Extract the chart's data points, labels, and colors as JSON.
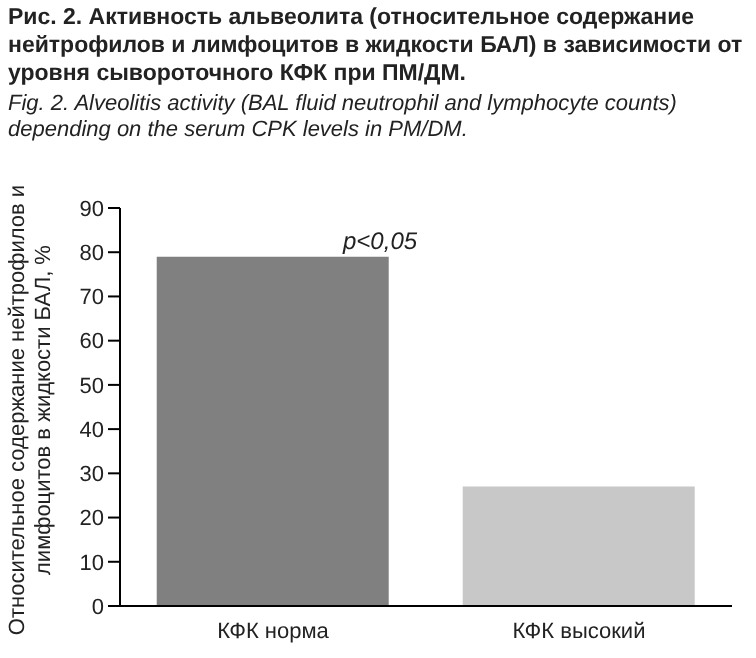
{
  "chart_data": {
    "type": "bar",
    "title": "Рис. 2. Активность альвеолита (относительное содержание нейтрофилов и лимфоцитов в жидкости БАЛ) в зависимости от уровня сывороточного КФК при ПМ/ДМ.",
    "subtitle": "Fig. 2. Alveolitis activity (BAL fluid neutrophil and lymphocyte counts) depending on the serum CPK levels in PM/DM.",
    "ylabel": "Относительное содержание нейтрофилов и лимфоцитов в жидкости БАЛ, %",
    "categories": [
      "КФК норма",
      "КФК высокий"
    ],
    "values": [
      79,
      27
    ],
    "colors": [
      "#808080",
      "#c8c8c8"
    ],
    "ylim": [
      0,
      90
    ],
    "yticks": [
      0,
      10,
      20,
      30,
      40,
      50,
      60,
      70,
      80,
      90
    ],
    "grid": false,
    "annotations": [
      {
        "text": "p<0,05",
        "x": "КФК норма",
        "y": 79
      }
    ]
  }
}
